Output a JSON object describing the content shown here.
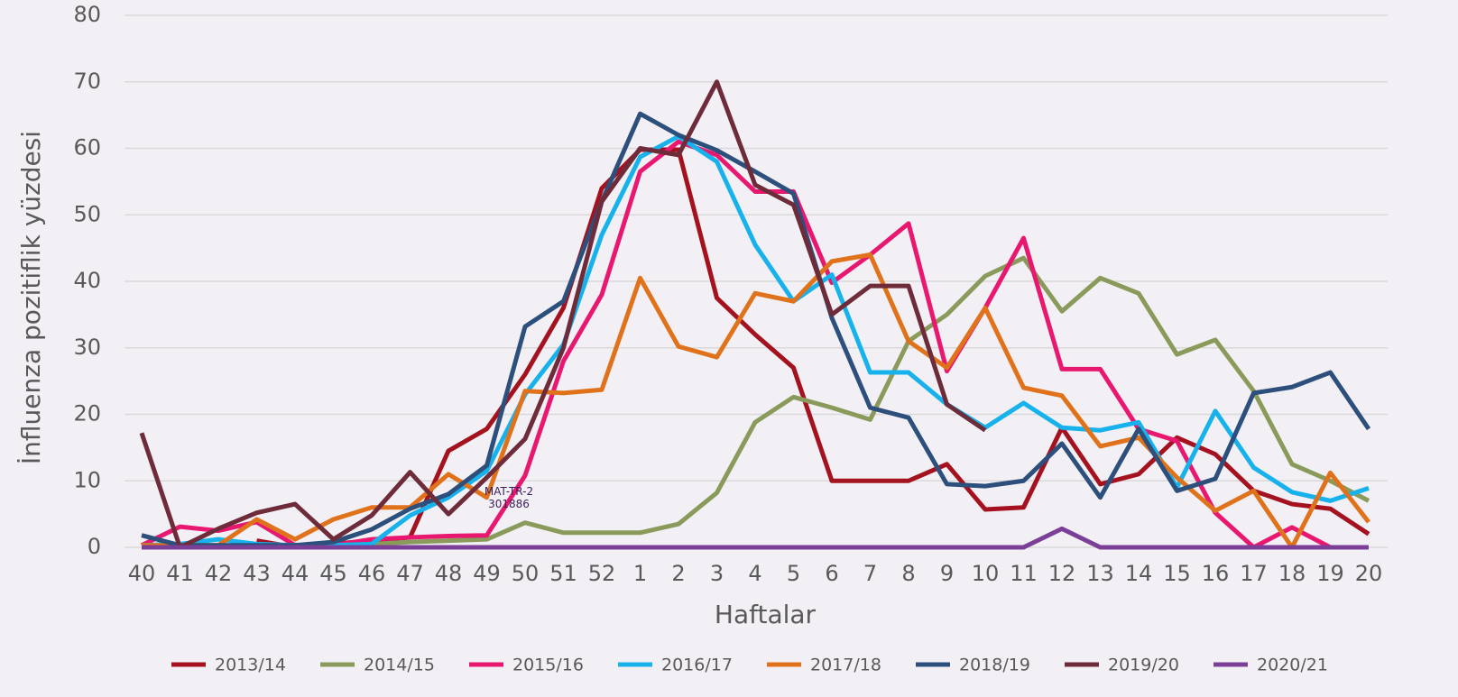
{
  "chart_data": {
    "type": "line",
    "y_label": "İnfluenza pozitiflik yüzdesi",
    "x_label": "Haftalar",
    "annotation": "MAT-TR-2301886",
    "categories": [
      "40",
      "41",
      "42",
      "43",
      "44",
      "45",
      "46",
      "47",
      "48",
      "49",
      "50",
      "51",
      "52",
      "1",
      "2",
      "3",
      "4",
      "5",
      "6",
      "7",
      "8",
      "9",
      "10",
      "11",
      "12",
      "13",
      "14",
      "15",
      "16",
      "17",
      "18",
      "19",
      "20"
    ],
    "ylim": [
      0,
      80
    ],
    "yticks": [
      0,
      10,
      20,
      30,
      40,
      50,
      60,
      70,
      80
    ],
    "grid": true,
    "legend": "bottom",
    "series": [
      {
        "name": "2013/14",
        "color": "#a5121f",
        "values": [
          null,
          null,
          null,
          1,
          0,
          0.5,
          1,
          1.5,
          14.5,
          17.8,
          26,
          36,
          54,
          59.8,
          59.8,
          37.5,
          32,
          27,
          10,
          10,
          10,
          12.5,
          5.7,
          6,
          18,
          9.5,
          11,
          16.5,
          14,
          8.5,
          6.5,
          5.8,
          2
        ]
      },
      {
        "name": "2014/15",
        "color": "#8a9a5b",
        "values": [
          0,
          0,
          0,
          0,
          0,
          0,
          0.5,
          0.8,
          1,
          1.2,
          3.7,
          2.2,
          2.2,
          2.2,
          3.5,
          8.2,
          18.8,
          22.6,
          21,
          19.2,
          31,
          35,
          40.8,
          43.5,
          35.5,
          40.5,
          38.2,
          29,
          31.2,
          23.5,
          12.5,
          10,
          7
        ]
      },
      {
        "name": "2015/16",
        "color": "#e8176f",
        "values": [
          0.3,
          3.1,
          2.5,
          3.8,
          0.3,
          0.3,
          1.2,
          1.5,
          1.7,
          1.8,
          10.8,
          28,
          38,
          56.5,
          61,
          59,
          53.5,
          53.5,
          39.8,
          44,
          48.7,
          26.5,
          36,
          46.5,
          26.8,
          26.8,
          17.8,
          16,
          5.2,
          0,
          3,
          0,
          null
        ]
      },
      {
        "name": "2016/17",
        "color": "#17b2ec",
        "values": [
          0.3,
          0.5,
          1.2,
          0.5,
          0.3,
          0.3,
          0.5,
          4.8,
          7.5,
          11.5,
          23,
          30.5,
          47,
          58.7,
          61.8,
          58,
          45.5,
          37,
          41,
          26.3,
          26.3,
          21.5,
          18,
          21.7,
          18,
          17.6,
          18.8,
          9,
          20.5,
          12,
          8.3,
          7,
          8.9
        ]
      },
      {
        "name": "2017/18",
        "color": "#e0721b",
        "values": [
          0.3,
          0.3,
          0.3,
          4.2,
          1.2,
          4.2,
          6,
          6,
          11,
          7.5,
          23.5,
          23.2,
          23.7,
          40.5,
          30.2,
          28.6,
          38.2,
          37,
          43,
          44,
          31,
          27,
          36,
          24,
          22.8,
          15.2,
          16.5,
          10.5,
          5.5,
          8.5,
          0,
          11.2,
          3.8
        ]
      },
      {
        "name": "2018/19",
        "color": "#2c4f7c",
        "values": [
          1.8,
          0.3,
          0.3,
          0.3,
          0.3,
          0.8,
          2.7,
          5.8,
          8,
          12.3,
          33.2,
          37,
          52,
          65.2,
          62,
          59.7,
          56.5,
          53.2,
          34.5,
          21,
          19.5,
          9.5,
          9.2,
          10,
          15.6,
          7.5,
          17.8,
          8.5,
          10.3,
          23.2,
          24.1,
          26.3,
          17.8
        ]
      },
      {
        "name": "2019/20",
        "color": "#6e2c3a",
        "values": [
          17.2,
          0,
          2.8,
          5.2,
          6.5,
          1.2,
          4.8,
          11.3,
          5,
          10.5,
          16.3,
          30,
          52,
          60,
          59,
          70,
          54.5,
          51.5,
          35,
          39.3,
          39.3,
          21.5,
          17.6,
          null,
          null,
          null,
          null,
          null,
          null,
          null,
          null,
          null,
          null
        ]
      },
      {
        "name": "2020/21",
        "color": "#7b3f98",
        "values": [
          0,
          0,
          0,
          0,
          0,
          0,
          0,
          0,
          0,
          0,
          0,
          0,
          0,
          0,
          0,
          0,
          0,
          0,
          0,
          0,
          0,
          0,
          0,
          0,
          2.8,
          0,
          0,
          0,
          0,
          0,
          0,
          0,
          0
        ]
      }
    ]
  }
}
